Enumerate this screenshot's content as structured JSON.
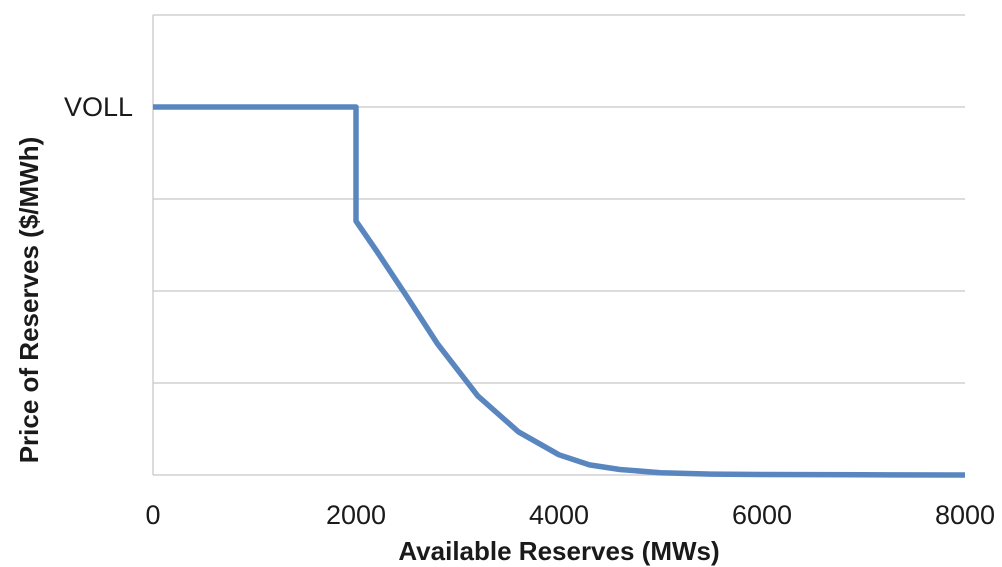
{
  "chart_data": {
    "type": "line",
    "title": "",
    "xlabel": "Available Reserves (MWs)",
    "ylabel": "Price of Reserves ($/MWh)",
    "xlim": [
      0,
      8000
    ],
    "ylim": [
      0,
      5
    ],
    "x_ticks": [
      "0",
      "2000",
      "4000",
      "6000",
      "8000"
    ],
    "y_ticks": [
      {
        "value": 4,
        "label": "VOLL"
      }
    ],
    "y_gridlines": [
      0,
      1,
      2,
      3,
      4,
      5
    ],
    "grid": true,
    "legend": "none",
    "series": [
      {
        "color": "#5a86c0",
        "x": [
          0,
          2000,
          2000,
          2200,
          2500,
          2800,
          3200,
          3600,
          4000,
          4300,
          4600,
          5000,
          5500,
          6000,
          7000,
          8000
        ],
        "y": [
          4,
          4,
          2.76,
          2.44,
          1.94,
          1.43,
          0.86,
          0.47,
          0.22,
          0.11,
          0.06,
          0.025,
          0.01,
          0.005,
          0.002,
          0
        ]
      }
    ]
  }
}
